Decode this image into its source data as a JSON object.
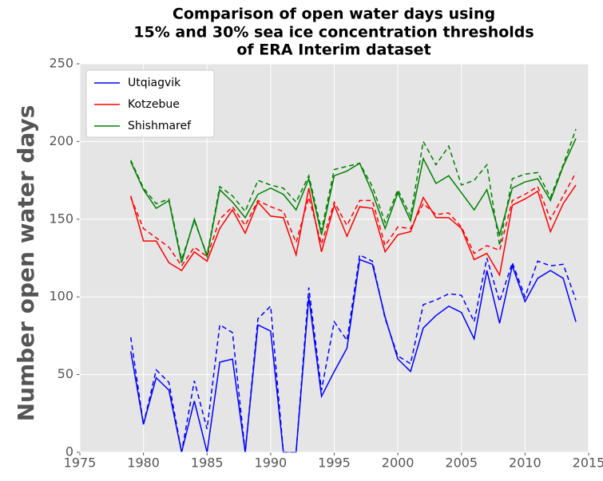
{
  "chart_data": {
    "type": "line",
    "title": [
      "Comparison of open water days using",
      "15% and 30% sea ice concentration thresholds",
      "of ERA Interim dataset"
    ],
    "y_label": "Number open water days",
    "x": [
      1979,
      1980,
      1981,
      1982,
      1983,
      1984,
      1985,
      1986,
      1987,
      1988,
      1989,
      1990,
      1991,
      1992,
      1993,
      1994,
      1995,
      1996,
      1997,
      1998,
      1999,
      2000,
      2001,
      2002,
      2003,
      2004,
      2005,
      2006,
      2007,
      2008,
      2009,
      2010,
      2011,
      2012,
      2013,
      2014
    ],
    "series": [
      {
        "name": "Utqiagvik",
        "color": "#0000ff",
        "values": [
          65,
          18,
          48,
          40,
          0,
          33,
          0,
          58,
          60,
          0,
          82,
          78,
          0,
          0,
          100,
          36,
          52,
          67,
          124,
          121,
          87,
          60,
          52,
          80,
          88,
          94,
          90,
          73,
          117,
          83,
          120,
          97,
          112,
          117,
          112,
          84
        ],
        "dashed_values": [
          74,
          18,
          53,
          45,
          0,
          46,
          15,
          82,
          77,
          0,
          86,
          94,
          0,
          0,
          106,
          40,
          84,
          72,
          127,
          123,
          86,
          62,
          57,
          95,
          98,
          102,
          101,
          84,
          125,
          97,
          122,
          100,
          123,
          120,
          121,
          98
        ]
      },
      {
        "name": "Kotzebue",
        "color": "#ff0000",
        "values": [
          165,
          136,
          136,
          122,
          117,
          129,
          123,
          144,
          156,
          141,
          161,
          152,
          151,
          127,
          170,
          129,
          159,
          139,
          158,
          157,
          129,
          140,
          142,
          164,
          151,
          151,
          144,
          124,
          128,
          114,
          159,
          163,
          168,
          142,
          160,
          172
        ],
        "dashed_values": [
          164,
          144,
          138,
          132,
          120,
          132,
          126,
          150,
          158,
          146,
          162,
          158,
          155,
          135,
          164,
          134,
          161,
          146,
          162,
          162,
          133,
          145,
          144,
          160,
          153,
          154,
          145,
          128,
          133,
          130,
          162,
          166,
          171,
          150,
          165,
          180
        ]
      },
      {
        "name": "Shishmaref",
        "color": "#008000",
        "values": [
          187,
          169,
          157,
          162,
          122,
          150,
          126,
          169,
          161,
          151,
          166,
          170,
          166,
          156,
          176,
          140,
          178,
          181,
          186,
          167,
          144,
          167,
          149,
          189,
          173,
          178,
          167,
          156,
          169,
          140,
          170,
          174,
          176,
          162,
          184,
          202
        ],
        "dashed_values": [
          188,
          170,
          160,
          163,
          124,
          149,
          127,
          171,
          165,
          155,
          175,
          172,
          170,
          161,
          178,
          143,
          182,
          184,
          186,
          171,
          148,
          169,
          152,
          200,
          185,
          197,
          172,
          175,
          185,
          133,
          176,
          179,
          180,
          164,
          185,
          208
        ]
      }
    ],
    "xlim": [
      1975,
      2015
    ],
    "xticks": [
      1975,
      1980,
      1985,
      1990,
      1995,
      2000,
      2005,
      2010,
      2015
    ],
    "ylim": [
      0,
      250
    ],
    "yticks": [
      0,
      50,
      100,
      150,
      200,
      250
    ],
    "grid": true,
    "legend": "upper left",
    "background": "#e5e5e5"
  }
}
